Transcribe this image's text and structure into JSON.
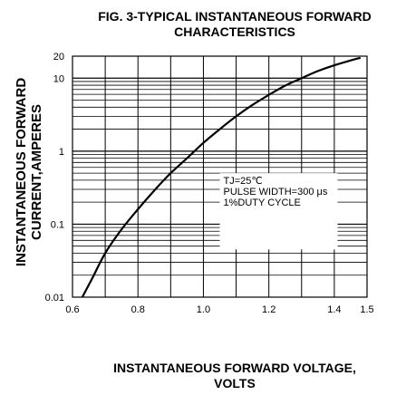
{
  "chart_data": {
    "type": "line",
    "title_line1": "FIG. 3-TYPICAL INSTANTANEOUS FORWARD",
    "title_line2": "CHARACTERISTICS",
    "xlabel_line1": "INSTANTANEOUS FORWARD VOLTAGE,",
    "xlabel_line2": "VOLTS",
    "ylabel_line1": "INSTANTANEOUS FORWARD",
    "ylabel_line2": "CURRENT,AMPERES",
    "x_scale": "linear",
    "y_scale": "log",
    "xlim": [
      0.6,
      1.5
    ],
    "ylim": [
      0.01,
      20
    ],
    "x_ticks": [
      0.6,
      0.8,
      1.0,
      1.2,
      1.4,
      1.5
    ],
    "x_tick_labels": [
      "0.6",
      "0.8",
      "1.0",
      "1.2",
      "1.4",
      "1.5"
    ],
    "y_ticks": [
      0.01,
      0.1,
      1,
      10,
      20
    ],
    "y_tick_labels": [
      "0.01",
      "0.1",
      "1",
      "10",
      "20"
    ],
    "grid": true,
    "annotation": [
      "TJ=25℃",
      "PULSE WIDTH=300 μs",
      "1%DUTY CYCLE"
    ],
    "series": [
      {
        "x": [
          0.63,
          0.66,
          0.7,
          0.75,
          0.8,
          0.85,
          0.9,
          0.95,
          1.0,
          1.05,
          1.1,
          1.15,
          1.2,
          1.25,
          1.3,
          1.35,
          1.4,
          1.45,
          1.48
        ],
        "y": [
          0.01,
          0.018,
          0.04,
          0.085,
          0.16,
          0.29,
          0.5,
          0.8,
          1.3,
          2.0,
          3.0,
          4.3,
          5.9,
          7.9,
          10.0,
          12.5,
          15.0,
          17.5,
          19.0
        ]
      }
    ]
  }
}
